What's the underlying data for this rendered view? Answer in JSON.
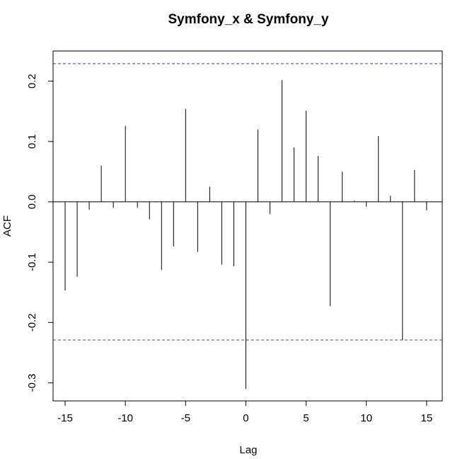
{
  "chart_data": {
    "type": "bar",
    "title": "Symfony_x & Symfony_y",
    "xlabel": "Lag",
    "ylabel": "ACF",
    "xlim": [
      -16,
      16.3
    ],
    "ylim": [
      -0.33,
      0.25
    ],
    "x_ticks": [
      -15,
      -10,
      -5,
      0,
      5,
      10,
      15
    ],
    "x_tick_labels": [
      "-15",
      "-10",
      "-5",
      "0",
      "5",
      "10",
      "15"
    ],
    "y_ticks": [
      -0.3,
      -0.2,
      -0.1,
      0.0,
      0.1,
      0.2
    ],
    "y_tick_labels": [
      "-0.3",
      "-0.2",
      "-0.1",
      "0.0",
      "0.1",
      "0.2"
    ],
    "confidence_bound": 0.229,
    "confidence_color": "#3b3bd6",
    "lags": [
      -15,
      -14,
      -13,
      -12,
      -11,
      -10,
      -9,
      -8,
      -7,
      -6,
      -5,
      -4,
      -3,
      -2,
      -1,
      0,
      1,
      2,
      3,
      4,
      5,
      6,
      7,
      8,
      9,
      10,
      11,
      12,
      13,
      14,
      15
    ],
    "values": [
      -0.147,
      -0.124,
      -0.013,
      0.06,
      -0.01,
      0.126,
      -0.01,
      -0.029,
      -0.113,
      -0.074,
      0.154,
      -0.083,
      0.025,
      -0.104,
      -0.107,
      -0.31,
      0.12,
      -0.02,
      0.202,
      0.09,
      0.151,
      0.076,
      -0.173,
      0.05,
      0.002,
      -0.008,
      0.109,
      0.01,
      -0.229,
      0.053,
      -0.014
    ]
  }
}
